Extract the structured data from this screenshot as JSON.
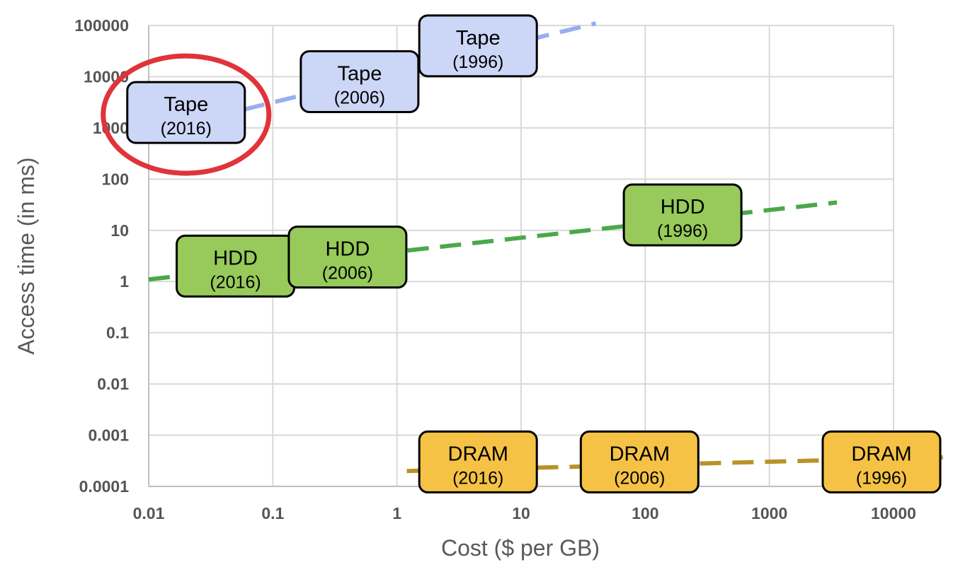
{
  "chart_data": {
    "type": "scatter",
    "title": "",
    "xlabel": "Cost ($ per GB)",
    "ylabel": "Access time (in ms)",
    "x_scale": "log",
    "y_scale": "log",
    "xlim": [
      0.01,
      10000
    ],
    "ylim": [
      0.0001,
      100000
    ],
    "xticks": [
      "0.01",
      "0.1",
      "1",
      "10",
      "100",
      "1000",
      "10000"
    ],
    "yticks": [
      "0.0001",
      "0.001",
      "0.01",
      "0.1",
      "1",
      "10",
      "100",
      "1000",
      "10000",
      "100000"
    ],
    "grid": true,
    "series": [
      {
        "name": "Tape",
        "color": "#ccd6f6",
        "trend_color": "#98aef0",
        "points": [
          {
            "label": "Tape",
            "year": "(2016)",
            "x": 0.02,
            "y": 2000
          },
          {
            "label": "Tape",
            "year": "(2006)",
            "x": 0.5,
            "y": 8000
          },
          {
            "label": "Tape",
            "year": "(1996)",
            "x": 4.5,
            "y": 40000
          }
        ],
        "trend": [
          {
            "x": 0.01,
            "y": 800
          },
          {
            "x": 40,
            "y": 110000
          }
        ]
      },
      {
        "name": "HDD",
        "color": "#97ca5a",
        "trend_color": "#4aa84a",
        "points": [
          {
            "label": "HDD",
            "year": "(2016)",
            "x": 0.05,
            "y": 2
          },
          {
            "label": "HDD",
            "year": "(2006)",
            "x": 0.4,
            "y": 3
          },
          {
            "label": "HDD",
            "year": "(1996)",
            "x": 200,
            "y": 20
          }
        ],
        "trend": [
          {
            "x": 0.01,
            "y": 1.1
          },
          {
            "x": 3500,
            "y": 35
          }
        ]
      },
      {
        "name": "DRAM",
        "color": "#f5c245",
        "trend_color": "#b8922a",
        "points": [
          {
            "label": "DRAM",
            "year": "(2016)",
            "x": 4.5,
            "y": 0.0003
          },
          {
            "label": "DRAM",
            "year": "(2006)",
            "x": 90,
            "y": 0.0003
          },
          {
            "label": "DRAM",
            "year": "(1996)",
            "x": 8000,
            "y": 0.0003
          }
        ],
        "trend": [
          {
            "x": 1.2,
            "y": 0.0002
          },
          {
            "x": 25000,
            "y": 0.00037
          }
        ]
      }
    ],
    "annotation": {
      "type": "circle",
      "color": "#e0333a",
      "target": "Tape (2016)"
    }
  }
}
